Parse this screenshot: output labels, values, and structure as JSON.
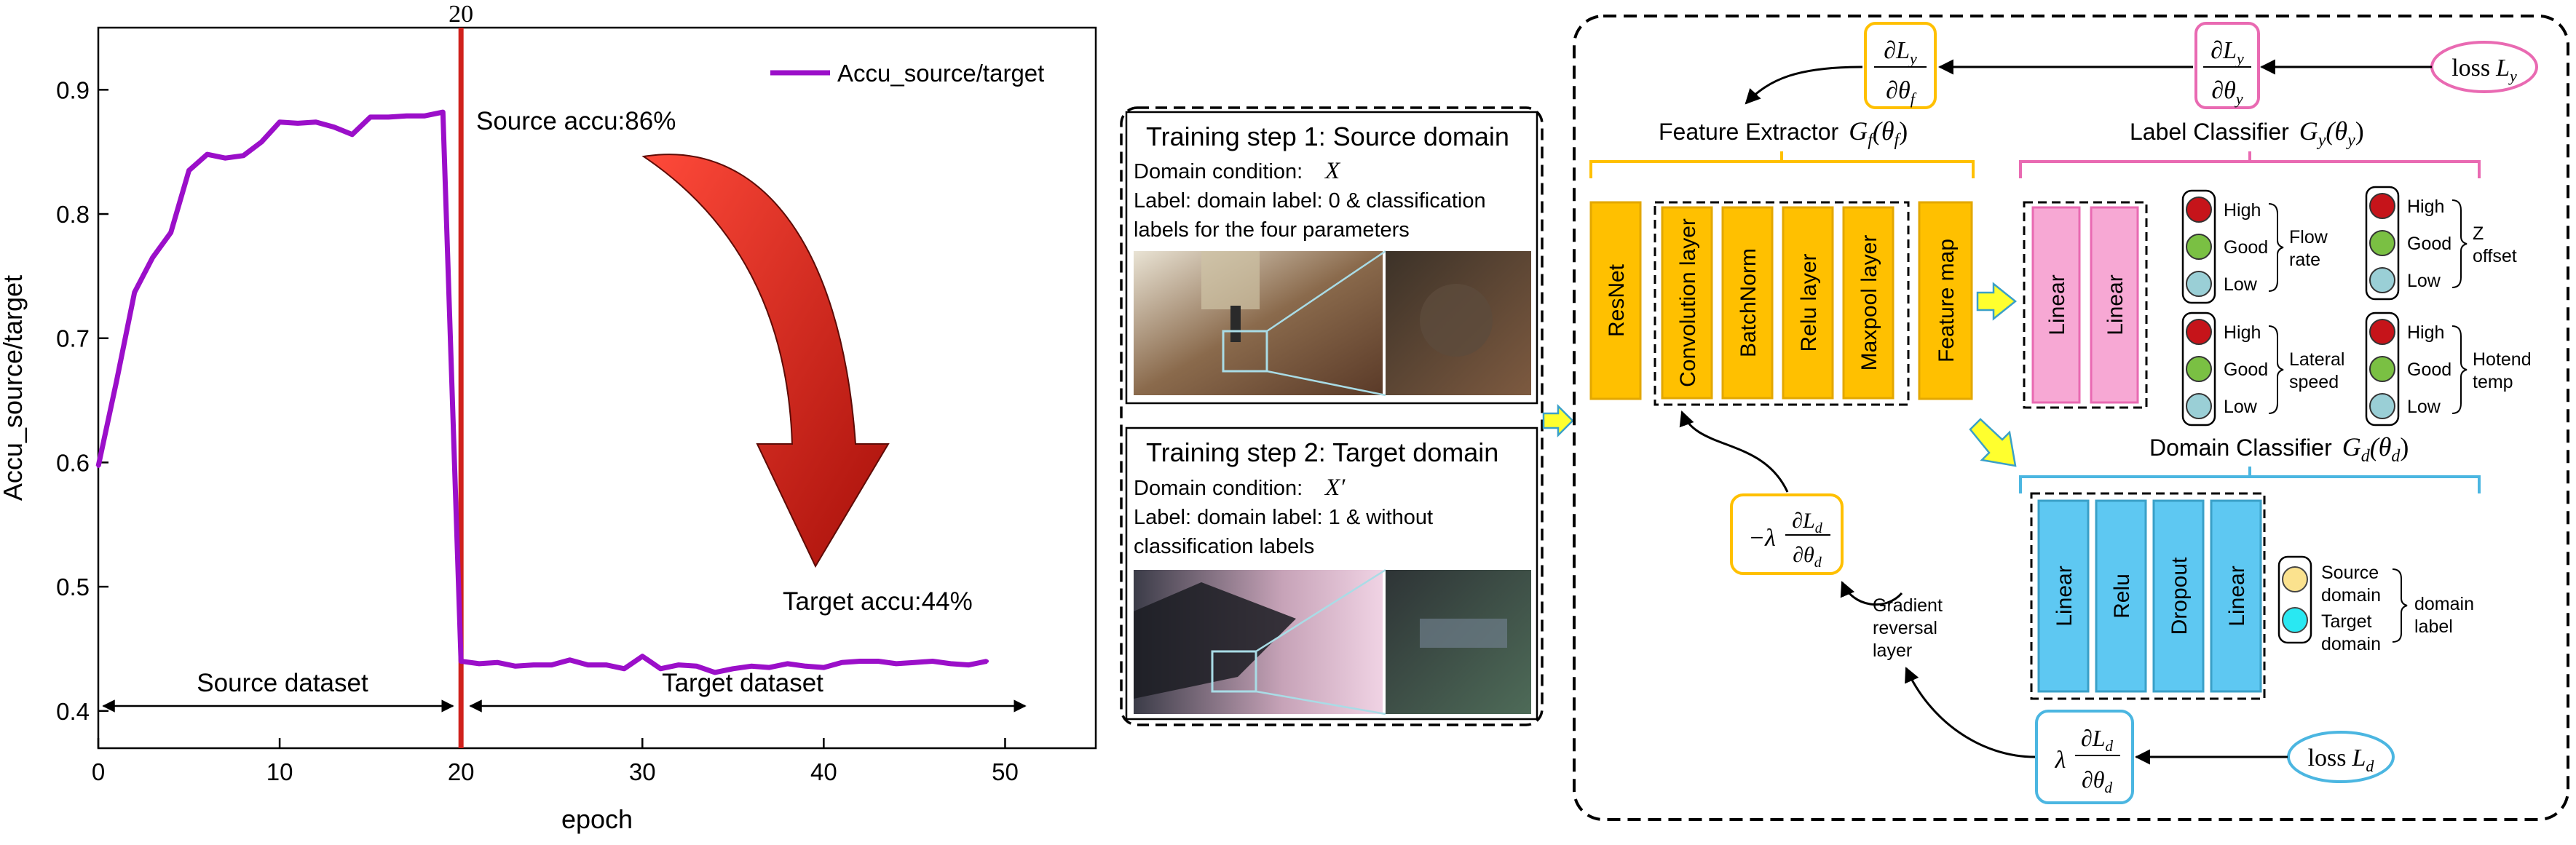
{
  "chart_data": {
    "type": "line",
    "xlabel": "epoch",
    "ylabel": "Accu_source/target",
    "xlim": [
      0,
      55
    ],
    "ylim": [
      0.37,
      0.95
    ],
    "x_ticks": [
      0,
      10,
      20,
      30,
      40,
      50
    ],
    "y_ticks": [
      0.4,
      0.5,
      0.6,
      0.7,
      0.8,
      0.9
    ],
    "grid": false,
    "legend_position": "top-right",
    "series": [
      {
        "name": "Accu_source/target",
        "color": "#9b0fc9",
        "x": [
          0,
          1,
          2,
          3,
          4,
          5,
          6,
          7,
          8,
          9,
          10,
          11,
          12,
          13,
          14,
          15,
          16,
          17,
          18,
          19,
          20,
          21,
          22,
          23,
          24,
          25,
          26,
          27,
          28,
          29,
          30,
          31,
          32,
          33,
          34,
          35,
          36,
          37,
          38,
          39,
          40,
          41,
          42,
          43,
          44,
          45,
          46,
          47,
          48,
          49
        ],
        "values": [
          0.597,
          0.665,
          0.737,
          0.765,
          0.785,
          0.835,
          0.848,
          0.845,
          0.847,
          0.858,
          0.874,
          0.873,
          0.874,
          0.87,
          0.864,
          0.878,
          0.878,
          0.879,
          0.879,
          0.882,
          0.44,
          0.438,
          0.439,
          0.436,
          0.437,
          0.437,
          0.441,
          0.437,
          0.437,
          0.434,
          0.444,
          0.434,
          0.437,
          0.436,
          0.431,
          0.434,
          0.436,
          0.435,
          0.438,
          0.436,
          0.435,
          0.439,
          0.44,
          0.44,
          0.438,
          0.439,
          0.44,
          0.438,
          0.437,
          0.44
        ]
      }
    ],
    "vline": {
      "x": 20,
      "label": "20",
      "color": "#d0211c"
    },
    "annotations": {
      "source_accu": "Source accu:86%",
      "target_accu": "Target accu:44%",
      "source_dataset": "Source dataset",
      "target_dataset": "Target dataset"
    }
  },
  "training": {
    "step1": {
      "title": "Training step 1: Source domain",
      "cond_label": "Domain condition:",
      "cond_var": "X",
      "line1": "Label: domain label: 0 & classification",
      "line2": "labels for the four parameters"
    },
    "step2": {
      "title": "Training step 2: Target domain",
      "cond_label": "Domain condition:",
      "cond_var": "X′",
      "line1": "Label: domain label: 1 & without",
      "line2": "classification labels"
    }
  },
  "network": {
    "fe_title": "Feature Extractor",
    "fe_sym_main": "G",
    "fe_sym_sub": "f",
    "fe_sym_arg": "(θ",
    "fe_sym_argsub": "f",
    "lc_title": "Label Classifier",
    "lc_sym_main": "G",
    "lc_sym_sub": "y",
    "lc_sym_arg": "(θ",
    "lc_sym_argsub": "y",
    "dc_title": "Domain Classifier",
    "dc_sym_main": "G",
    "dc_sym_sub": "d",
    "dc_sym_arg": "(θ",
    "dc_sym_argsub": "d",
    "fe_layers": [
      "ResNet",
      "Convolution layer",
      "BatchNorm",
      "Relu layer",
      "Maxpool layer",
      "Feature map"
    ],
    "lc_layers": [
      "Linear",
      "Linear"
    ],
    "dc_layers": [
      "Linear",
      "Relu",
      "Dropout",
      "Linear"
    ],
    "lights": {
      "levels": [
        "High",
        "Good",
        "Low"
      ],
      "flow": [
        "Flow",
        "rate"
      ],
      "z": [
        "Z",
        "offset"
      ],
      "lateral": [
        "Lateral",
        "speed"
      ],
      "hotend": [
        "Hotend",
        "temp"
      ]
    },
    "domain_label": {
      "source": [
        "Source",
        "domain"
      ],
      "target": [
        "Target",
        "domain"
      ],
      "side": [
        "domain",
        "label"
      ]
    },
    "grl": [
      "Gradient",
      "reversal",
      "layer"
    ],
    "loss_y": {
      "text": "loss",
      "sym": "L",
      "sub": "y"
    },
    "loss_d": {
      "text": "loss",
      "sym": "L",
      "sub": "d"
    },
    "eq": {
      "partial": "∂",
      "L": "L",
      "theta": "θ",
      "neg_lambda": "−λ",
      "lambda": "λ",
      "sub_y": "y",
      "sub_f": "f",
      "sub_d": "d"
    }
  },
  "colors": {
    "purple_line": "#9b0fc9",
    "red_line": "#d0211c",
    "orange": "#ffc000",
    "orange_border": "#e3a700",
    "pink": "#f7a8d4",
    "pink_border": "#e96ab2",
    "blue": "#5ec8f2",
    "blue_border": "#4bb6e1",
    "yellow_arrow": "#ffff2e"
  }
}
